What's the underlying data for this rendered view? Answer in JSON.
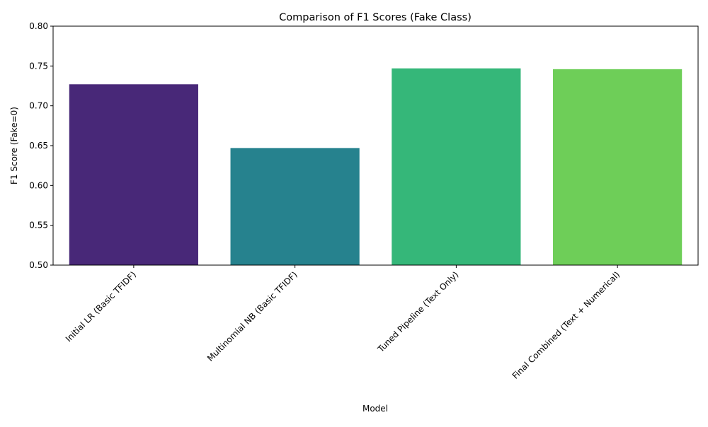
{
  "chart_data": {
    "type": "bar",
    "title": "Comparison of F1 Scores (Fake Class)",
    "xlabel": "Model",
    "ylabel": "F1 Score (Fake=0)",
    "categories": [
      "Initial LR (Basic TFIDF)",
      "Multinomial NB (Basic TFIDF)",
      "Tuned Pipeline (Text Only)",
      "Final Combined (Text + Numerical)"
    ],
    "values": [
      0.727,
      0.647,
      0.747,
      0.746
    ],
    "ylim": [
      0.5,
      0.8
    ],
    "yticks": [
      "0.50",
      "0.55",
      "0.60",
      "0.65",
      "0.70",
      "0.75",
      "0.80"
    ],
    "grid": false,
    "bar_colors": [
      "#482878",
      "#26828e",
      "#35b779",
      "#6ece58"
    ]
  }
}
